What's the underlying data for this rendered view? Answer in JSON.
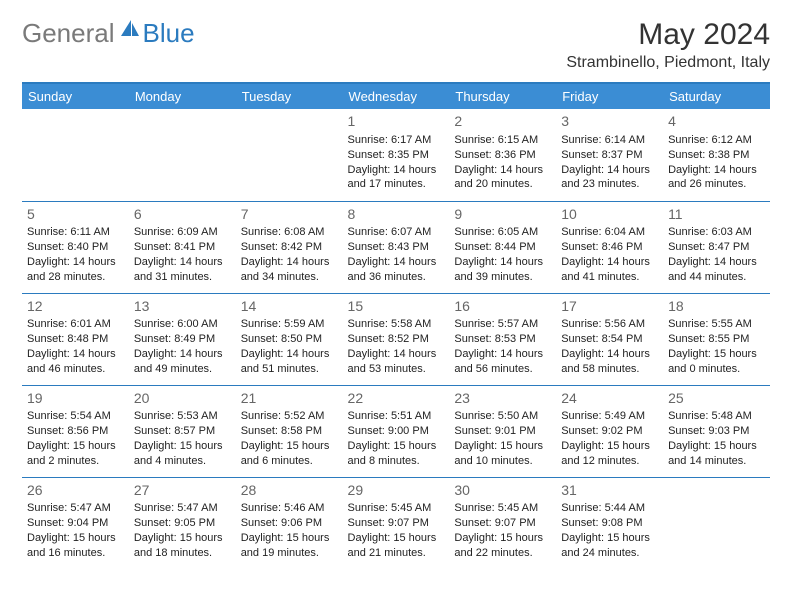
{
  "brand": {
    "gray": "General",
    "blue": "Blue"
  },
  "title": "May 2024",
  "location": "Strambinello, Piedmont, Italy",
  "colors": {
    "header_bg": "#3b8dd4",
    "header_text": "#ffffff",
    "border": "#2b7bbf",
    "logo_gray": "#7a7a7a",
    "logo_blue": "#2b7bbf",
    "daynum": "#666666",
    "body_text": "#222222"
  },
  "dayHeaders": [
    "Sunday",
    "Monday",
    "Tuesday",
    "Wednesday",
    "Thursday",
    "Friday",
    "Saturday"
  ],
  "weeks": [
    [
      null,
      null,
      null,
      {
        "d": "1",
        "sr": "6:17 AM",
        "ss": "8:35 PM",
        "dl": "14 hours and 17 minutes."
      },
      {
        "d": "2",
        "sr": "6:15 AM",
        "ss": "8:36 PM",
        "dl": "14 hours and 20 minutes."
      },
      {
        "d": "3",
        "sr": "6:14 AM",
        "ss": "8:37 PM",
        "dl": "14 hours and 23 minutes."
      },
      {
        "d": "4",
        "sr": "6:12 AM",
        "ss": "8:38 PM",
        "dl": "14 hours and 26 minutes."
      }
    ],
    [
      {
        "d": "5",
        "sr": "6:11 AM",
        "ss": "8:40 PM",
        "dl": "14 hours and 28 minutes."
      },
      {
        "d": "6",
        "sr": "6:09 AM",
        "ss": "8:41 PM",
        "dl": "14 hours and 31 minutes."
      },
      {
        "d": "7",
        "sr": "6:08 AM",
        "ss": "8:42 PM",
        "dl": "14 hours and 34 minutes."
      },
      {
        "d": "8",
        "sr": "6:07 AM",
        "ss": "8:43 PM",
        "dl": "14 hours and 36 minutes."
      },
      {
        "d": "9",
        "sr": "6:05 AM",
        "ss": "8:44 PM",
        "dl": "14 hours and 39 minutes."
      },
      {
        "d": "10",
        "sr": "6:04 AM",
        "ss": "8:46 PM",
        "dl": "14 hours and 41 minutes."
      },
      {
        "d": "11",
        "sr": "6:03 AM",
        "ss": "8:47 PM",
        "dl": "14 hours and 44 minutes."
      }
    ],
    [
      {
        "d": "12",
        "sr": "6:01 AM",
        "ss": "8:48 PM",
        "dl": "14 hours and 46 minutes."
      },
      {
        "d": "13",
        "sr": "6:00 AM",
        "ss": "8:49 PM",
        "dl": "14 hours and 49 minutes."
      },
      {
        "d": "14",
        "sr": "5:59 AM",
        "ss": "8:50 PM",
        "dl": "14 hours and 51 minutes."
      },
      {
        "d": "15",
        "sr": "5:58 AM",
        "ss": "8:52 PM",
        "dl": "14 hours and 53 minutes."
      },
      {
        "d": "16",
        "sr": "5:57 AM",
        "ss": "8:53 PM",
        "dl": "14 hours and 56 minutes."
      },
      {
        "d": "17",
        "sr": "5:56 AM",
        "ss": "8:54 PM",
        "dl": "14 hours and 58 minutes."
      },
      {
        "d": "18",
        "sr": "5:55 AM",
        "ss": "8:55 PM",
        "dl": "15 hours and 0 minutes."
      }
    ],
    [
      {
        "d": "19",
        "sr": "5:54 AM",
        "ss": "8:56 PM",
        "dl": "15 hours and 2 minutes."
      },
      {
        "d": "20",
        "sr": "5:53 AM",
        "ss": "8:57 PM",
        "dl": "15 hours and 4 minutes."
      },
      {
        "d": "21",
        "sr": "5:52 AM",
        "ss": "8:58 PM",
        "dl": "15 hours and 6 minutes."
      },
      {
        "d": "22",
        "sr": "5:51 AM",
        "ss": "9:00 PM",
        "dl": "15 hours and 8 minutes."
      },
      {
        "d": "23",
        "sr": "5:50 AM",
        "ss": "9:01 PM",
        "dl": "15 hours and 10 minutes."
      },
      {
        "d": "24",
        "sr": "5:49 AM",
        "ss": "9:02 PM",
        "dl": "15 hours and 12 minutes."
      },
      {
        "d": "25",
        "sr": "5:48 AM",
        "ss": "9:03 PM",
        "dl": "15 hours and 14 minutes."
      }
    ],
    [
      {
        "d": "26",
        "sr": "5:47 AM",
        "ss": "9:04 PM",
        "dl": "15 hours and 16 minutes."
      },
      {
        "d": "27",
        "sr": "5:47 AM",
        "ss": "9:05 PM",
        "dl": "15 hours and 18 minutes."
      },
      {
        "d": "28",
        "sr": "5:46 AM",
        "ss": "9:06 PM",
        "dl": "15 hours and 19 minutes."
      },
      {
        "d": "29",
        "sr": "5:45 AM",
        "ss": "9:07 PM",
        "dl": "15 hours and 21 minutes."
      },
      {
        "d": "30",
        "sr": "5:45 AM",
        "ss": "9:07 PM",
        "dl": "15 hours and 22 minutes."
      },
      {
        "d": "31",
        "sr": "5:44 AM",
        "ss": "9:08 PM",
        "dl": "15 hours and 24 minutes."
      },
      null
    ]
  ],
  "labels": {
    "sunrise": "Sunrise: ",
    "sunset": "Sunset: ",
    "daylight": "Daylight: "
  }
}
